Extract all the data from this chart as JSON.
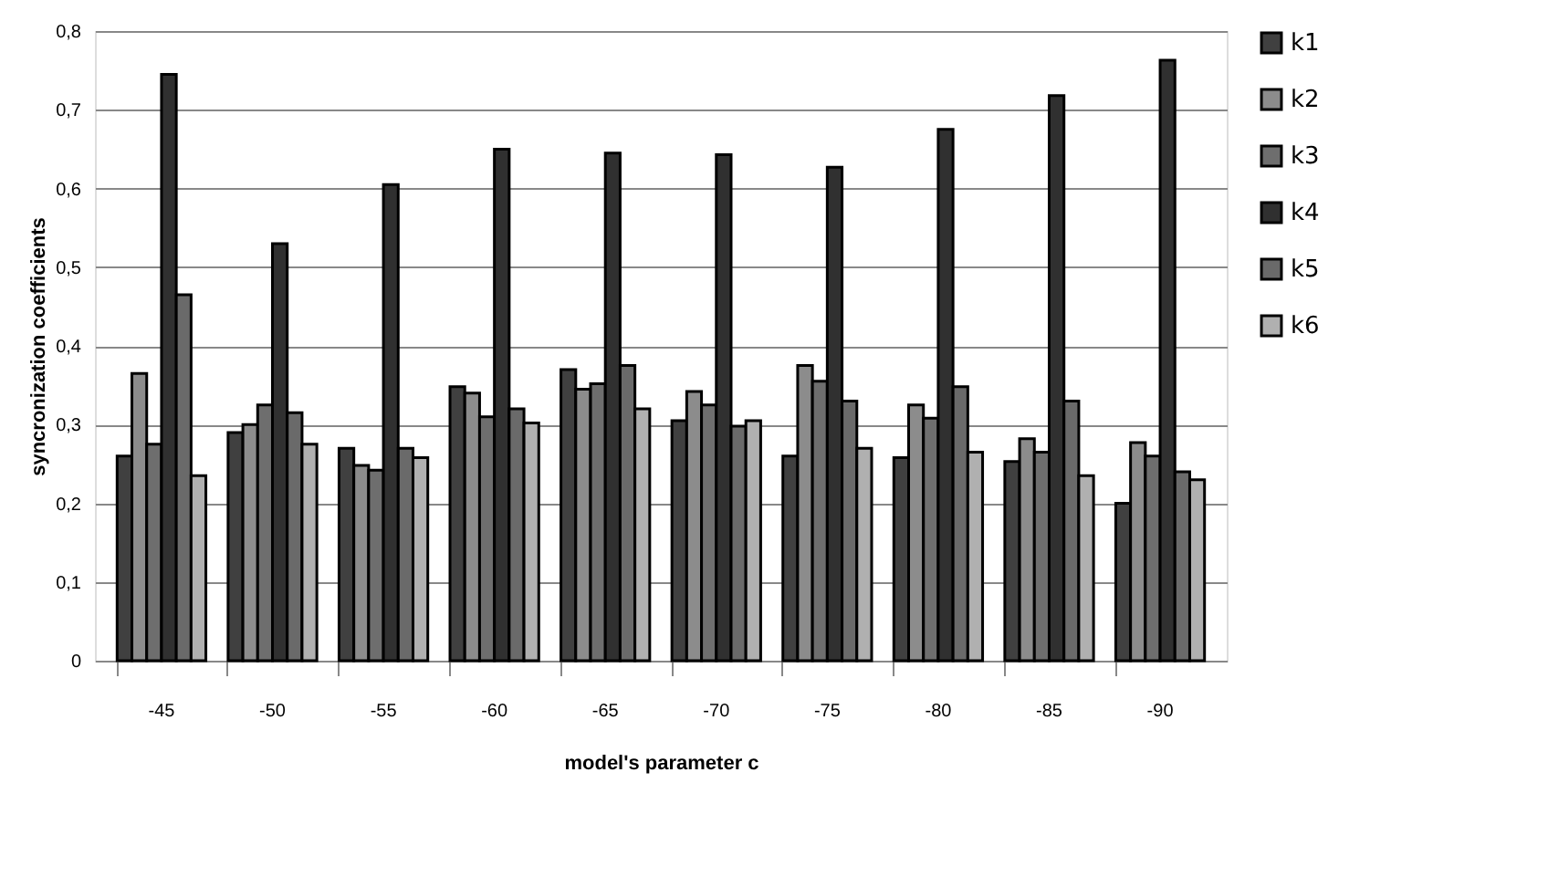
{
  "chart_data": {
    "type": "bar",
    "xlabel": "model's parameter c",
    "ylabel": "syncronization coefficients",
    "categories": [
      "-45",
      "-50",
      "-55",
      "-60",
      "-65",
      "-70",
      "-75",
      "-80",
      "-85",
      "-90"
    ],
    "series": [
      {
        "name": "k1",
        "color": "#404040",
        "values": [
          0.26,
          0.29,
          0.27,
          0.348,
          0.37,
          0.305,
          0.26,
          0.258,
          0.253,
          0.2
        ]
      },
      {
        "name": "k2",
        "color": "#8c8c8c",
        "values": [
          0.365,
          0.3,
          0.248,
          0.34,
          0.345,
          0.342,
          0.375,
          0.325,
          0.282,
          0.277
        ]
      },
      {
        "name": "k3",
        "color": "#6e6e6e",
        "values": [
          0.275,
          0.325,
          0.242,
          0.31,
          0.352,
          0.325,
          0.355,
          0.308,
          0.265,
          0.26
        ]
      },
      {
        "name": "k4",
        "color": "#303030",
        "values": [
          0.745,
          0.53,
          0.605,
          0.65,
          0.645,
          0.643,
          0.627,
          0.675,
          0.718,
          0.763
        ]
      },
      {
        "name": "k5",
        "color": "#6a6a6a",
        "values": [
          0.465,
          0.315,
          0.27,
          0.32,
          0.375,
          0.298,
          0.33,
          0.348,
          0.33,
          0.24
        ]
      },
      {
        "name": "k6",
        "color": "#b0b0b0",
        "values": [
          0.235,
          0.275,
          0.258,
          0.302,
          0.32,
          0.305,
          0.27,
          0.265,
          0.235,
          0.23
        ]
      }
    ],
    "ylim": [
      0,
      0.8
    ],
    "yticks": [
      {
        "value": 0,
        "label": "0"
      },
      {
        "value": 0.1,
        "label": "0,1"
      },
      {
        "value": 0.2,
        "label": "0,2"
      },
      {
        "value": 0.3,
        "label": "0,3"
      },
      {
        "value": 0.4,
        "label": "0,4"
      },
      {
        "value": 0.5,
        "label": "0,5"
      },
      {
        "value": 0.6,
        "label": "0,6"
      },
      {
        "value": 0.7,
        "label": "0,7"
      },
      {
        "value": 0.8,
        "label": "0,8"
      }
    ],
    "grid": "y",
    "legend": "right"
  }
}
